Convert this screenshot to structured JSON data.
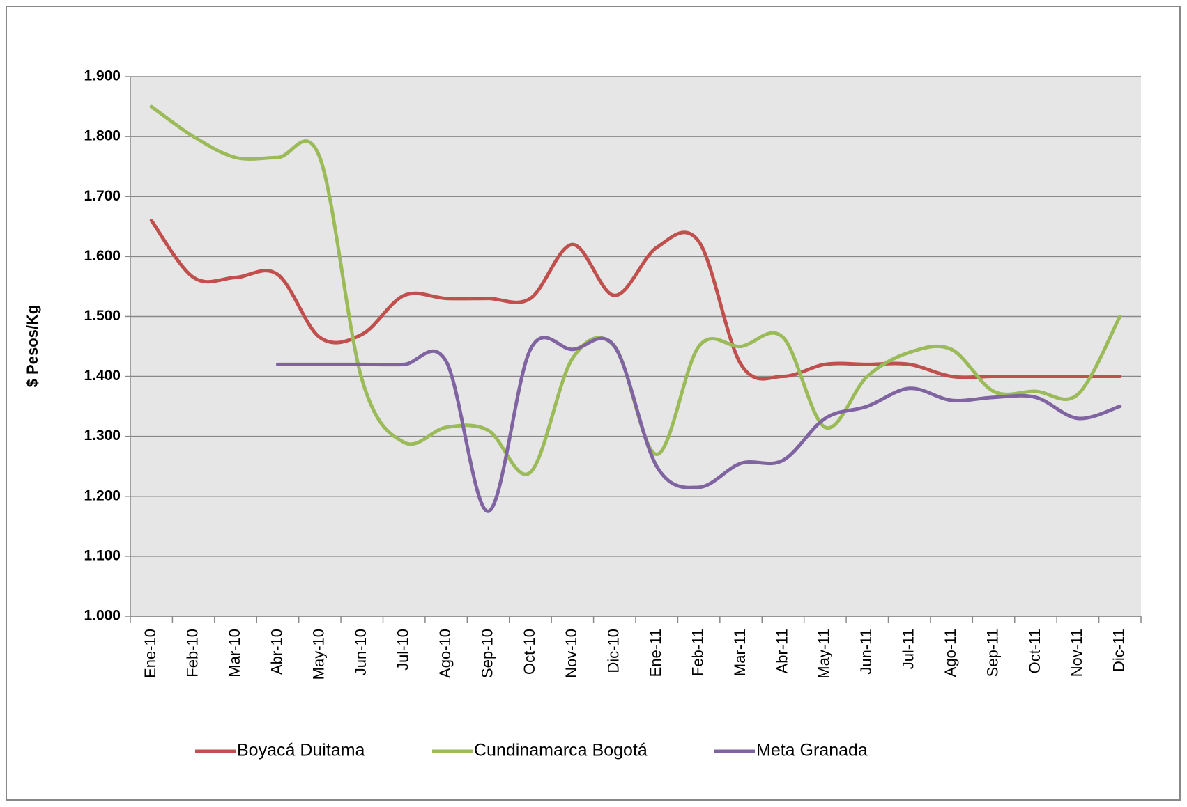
{
  "chart_data": {
    "type": "line",
    "y_label": "$ Pesos/Kg",
    "categories": [
      "Ene-10",
      "Feb-10",
      "Mar-10",
      "Abr-10",
      "May-10",
      "Jun-10",
      "Jul-10",
      "Ago-10",
      "Sep-10",
      "Oct-10",
      "Nov-10",
      "Dic-10",
      "Ene-11",
      "Feb-11",
      "Mar-11",
      "Abr-11",
      "May-11",
      "Jun-11",
      "Jul-11",
      "Ago-11",
      "Sep-11",
      "Oct-11",
      "Nov-11",
      "Dic-11"
    ],
    "series": [
      {
        "name": "Boyacá Duitama",
        "color": "#c0504d",
        "values": [
          1660,
          1565,
          1565,
          1570,
          1465,
          1470,
          1535,
          1530,
          1530,
          1530,
          1620,
          1535,
          1615,
          1625,
          1420,
          1400,
          1420,
          1420,
          1420,
          1400,
          1400,
          1400,
          1400,
          1400
        ]
      },
      {
        "name": "Cundinamarca Bogotá",
        "color": "#9bbb59",
        "values": [
          1850,
          1800,
          1765,
          1765,
          1765,
          1395,
          1290,
          1315,
          1310,
          1240,
          1430,
          1450,
          1270,
          1450,
          1450,
          1465,
          1315,
          1400,
          1440,
          1445,
          1375,
          1375,
          1370,
          1500
        ]
      },
      {
        "name": "Meta Granada",
        "color": "#8064a2",
        "values": [
          null,
          null,
          null,
          1420,
          1420,
          1420,
          1420,
          1425,
          1175,
          1445,
          1445,
          1450,
          1250,
          1215,
          1255,
          1260,
          1330,
          1350,
          1380,
          1360,
          1365,
          1365,
          1330,
          1350
        ]
      }
    ],
    "ylim": [
      1000,
      1900
    ],
    "yticks": [
      {
        "value": 1000,
        "label": "1.000"
      },
      {
        "value": 1100,
        "label": "1.100"
      },
      {
        "value": 1200,
        "label": "1.200"
      },
      {
        "value": 1300,
        "label": "1.300"
      },
      {
        "value": 1400,
        "label": "1.400"
      },
      {
        "value": 1500,
        "label": "1.500"
      },
      {
        "value": 1600,
        "label": "1.600"
      },
      {
        "value": 1700,
        "label": "1.700"
      },
      {
        "value": 1800,
        "label": "1.800"
      },
      {
        "value": 1900,
        "label": "1.900"
      }
    ],
    "grid": true,
    "legend": "bottom",
    "smooth": true
  }
}
